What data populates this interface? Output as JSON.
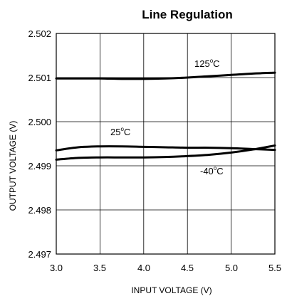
{
  "chart_data": {
    "type": "line",
    "title": "Line Regulation",
    "xlabel": "INPUT VOLTAGE (V)",
    "ylabel": "OUTPUT VOLTAGE (V)",
    "xlim": [
      3.0,
      5.5
    ],
    "ylim": [
      2.497,
      2.502
    ],
    "grid": true,
    "xticks": [
      "3.0",
      "3.5",
      "4.0",
      "4.5",
      "5.0",
      "5.5"
    ],
    "yticks": [
      "2.502",
      "2.501",
      "2.500",
      "2.499",
      "2.498",
      "2.497"
    ],
    "series": [
      {
        "name": "125°C",
        "x": [
          3.0,
          3.25,
          3.5,
          3.75,
          4.0,
          4.25,
          4.5,
          4.75,
          5.0,
          5.25,
          5.5
        ],
        "y": [
          2.50098,
          2.50098,
          2.50098,
          2.50097,
          2.50097,
          2.50098,
          2.501,
          2.50103,
          2.50106,
          2.50109,
          2.50111
        ]
      },
      {
        "name": "25°C",
        "x": [
          3.0,
          3.25,
          3.5,
          3.75,
          4.0,
          4.25,
          4.5,
          4.75,
          5.0,
          5.25,
          5.5
        ],
        "y": [
          2.49935,
          2.49942,
          2.49944,
          2.49944,
          2.49943,
          2.49942,
          2.49941,
          2.49941,
          2.4994,
          2.49938,
          2.49936
        ]
      },
      {
        "name": "-40°C",
        "x": [
          3.0,
          3.25,
          3.5,
          3.75,
          4.0,
          4.25,
          4.5,
          4.75,
          5.0,
          5.25,
          5.5
        ],
        "y": [
          2.49914,
          2.49918,
          2.49919,
          2.49919,
          2.49919,
          2.4992,
          2.49922,
          2.49925,
          2.4993,
          2.49937,
          2.49946
        ]
      }
    ],
    "annotations": [
      {
        "base": "125",
        "sup": "o",
        "unit": "C"
      },
      {
        "base": "25",
        "sup": "o",
        "unit": "C"
      },
      {
        "base": "-40",
        "sup": "o",
        "unit": "C"
      }
    ]
  }
}
